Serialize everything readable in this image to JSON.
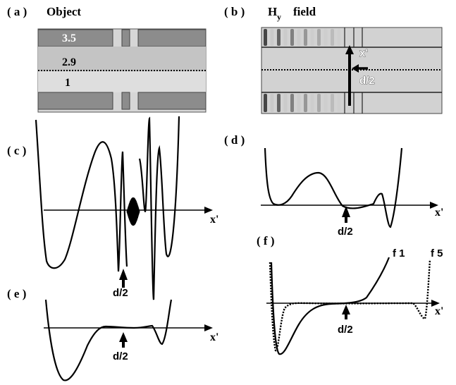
{
  "panel_a": {
    "label": "( a )",
    "title": "Object",
    "index_top": "3.5",
    "index_middle": "2.9",
    "index_bottom": "1"
  },
  "panel_b": {
    "label": "( b )",
    "title_main": "H",
    "title_sub": "y",
    "title_rest": "field",
    "arrow_label_x": "x'",
    "arrow_label_d": "d/2"
  },
  "panel_c": {
    "label": "( c )",
    "axis_label": "x'",
    "marker_label": "d/2"
  },
  "panel_d": {
    "label": "( d )",
    "axis_label": "x'",
    "marker_label": "d/2"
  },
  "panel_e": {
    "label": "( e )",
    "axis_label": "x'",
    "marker_label": "d/2"
  },
  "panel_f": {
    "label": "( f )",
    "axis_label": "x'",
    "marker_label": "d/2",
    "series": [
      {
        "name": "f 1",
        "style": "solid"
      },
      {
        "name": "f 5",
        "style": "dotted"
      }
    ]
  },
  "colors": {
    "cladding": "#8c8c8c",
    "core_upper": "#c4c4c4",
    "core_lower": "#dadada",
    "ink": "#000000"
  }
}
